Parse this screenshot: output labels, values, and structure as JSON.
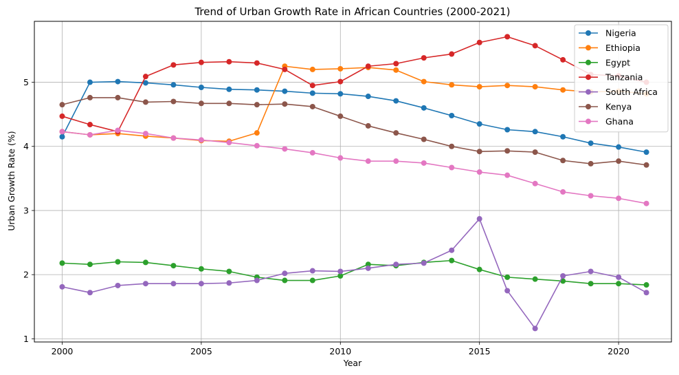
{
  "chart_data": {
    "type": "line",
    "title": "Trend of Urban Growth Rate in African Countries (2000-2021)",
    "xlabel": "Year",
    "ylabel": "Urban Growth Rate (%)",
    "xlim": [
      1999.0,
      2021.9
    ],
    "ylim": [
      0.95,
      5.95
    ],
    "xticks": [
      2000,
      2005,
      2010,
      2015,
      2020
    ],
    "yticks": [
      1,
      2,
      3,
      4,
      5
    ],
    "grid": true,
    "legend_position": "top-right",
    "x": [
      2000,
      2001,
      2002,
      2003,
      2004,
      2005,
      2006,
      2007,
      2008,
      2009,
      2010,
      2011,
      2012,
      2013,
      2014,
      2015,
      2016,
      2017,
      2018,
      2019,
      2020,
      2021
    ],
    "series": [
      {
        "name": "Nigeria",
        "color": "#1f77b4",
        "values": [
          4.15,
          5.0,
          5.01,
          4.99,
          4.96,
          4.92,
          4.89,
          4.88,
          4.86,
          4.83,
          4.82,
          4.78,
          4.71,
          4.6,
          4.48,
          4.35,
          4.26,
          4.23,
          4.15,
          4.05,
          3.99,
          3.91
        ]
      },
      {
        "name": "Ethiopia",
        "color": "#ff7f0e",
        "values": [
          4.23,
          4.18,
          4.2,
          4.16,
          4.13,
          4.09,
          4.08,
          4.21,
          5.25,
          5.2,
          5.21,
          5.23,
          5.19,
          5.01,
          4.96,
          4.93,
          4.95,
          4.93,
          4.88,
          4.85,
          4.86,
          4.82
        ]
      },
      {
        "name": "Egypt",
        "color": "#2ca02c",
        "values": [
          2.18,
          2.16,
          2.2,
          2.19,
          2.14,
          2.09,
          2.05,
          1.96,
          1.91,
          1.91,
          1.98,
          2.16,
          2.14,
          2.19,
          2.22,
          2.08,
          1.96,
          1.93,
          1.9,
          1.86,
          1.86,
          1.84
        ]
      },
      {
        "name": "Tanzania",
        "color": "#d62728",
        "values": [
          4.47,
          4.34,
          4.23,
          5.09,
          5.27,
          5.31,
          5.32,
          5.3,
          5.2,
          4.95,
          5.01,
          5.25,
          5.29,
          5.38,
          5.44,
          5.62,
          5.71,
          5.57,
          5.35,
          5.12,
          5.1,
          5.0
        ]
      },
      {
        "name": "South Africa",
        "color": "#9467bd",
        "values": [
          1.81,
          1.72,
          1.83,
          1.86,
          1.86,
          1.86,
          1.87,
          1.91,
          2.02,
          2.06,
          2.05,
          2.1,
          2.16,
          2.18,
          2.38,
          2.87,
          1.75,
          1.16,
          1.98,
          2.05,
          1.96,
          1.72
        ]
      },
      {
        "name": "Kenya",
        "color": "#8c564b",
        "values": [
          4.65,
          4.76,
          4.76,
          4.69,
          4.7,
          4.67,
          4.67,
          4.65,
          4.66,
          4.62,
          4.47,
          4.32,
          4.21,
          4.11,
          4.0,
          3.92,
          3.93,
          3.91,
          3.78,
          3.73,
          3.77,
          3.71
        ]
      },
      {
        "name": "Ghana",
        "color": "#e377c2",
        "values": [
          4.23,
          4.18,
          4.25,
          4.2,
          4.13,
          4.1,
          4.06,
          4.01,
          3.96,
          3.9,
          3.82,
          3.77,
          3.77,
          3.74,
          3.67,
          3.6,
          3.55,
          3.42,
          3.29,
          3.23,
          3.19,
          3.11
        ]
      }
    ]
  }
}
